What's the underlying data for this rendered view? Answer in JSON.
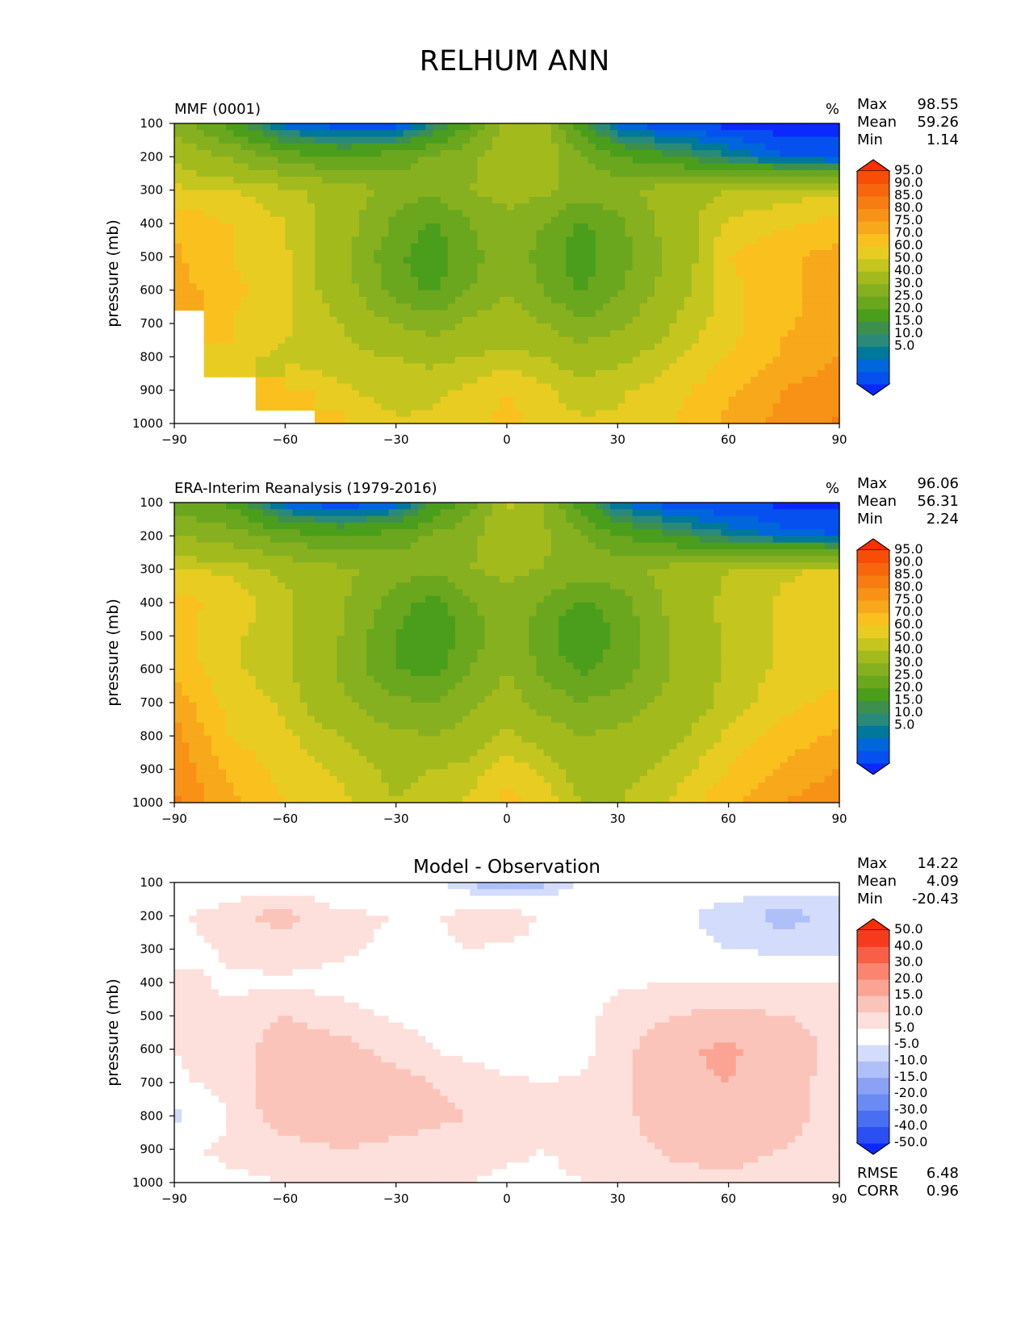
{
  "figure": {
    "title": "RELHUM ANN"
  },
  "colors": {
    "abs_levels": [
      "#0b29ff",
      "#0650f0",
      "#0066dc",
      "#00789a",
      "#2a8a7a",
      "#3d8f4e",
      "#4a9e1c",
      "#6aa71e",
      "#86b01f",
      "#a3ba1d",
      "#c4c61f",
      "#e8cc22",
      "#f9c01e",
      "#f7a81b",
      "#f79217",
      "#f77c11",
      "#f7650d",
      "#f84d06",
      "#fb2f00"
    ],
    "diff_levels": [
      "#0b29ff",
      "#2b4ff3",
      "#4a6ef2",
      "#6a8af4",
      "#8aa1f5",
      "#afbff8",
      "#d3dcfa",
      "#ffffff",
      "#fde0db",
      "#fbc4ba",
      "#fba494",
      "#fa8470",
      "#f85f47",
      "#f53a1d",
      "#fb2f00"
    ]
  },
  "panels": [
    {
      "id": "model",
      "title_left": "MMF (0001)",
      "title_center": "",
      "units": "%",
      "stats": {
        "labels": [
          "Max",
          "Mean",
          "Min"
        ],
        "values": [
          "98.55",
          "59.26",
          "1.14"
        ]
      },
      "ylabel": "pressure (mb)",
      "colorbar_labels": [
        "95.0",
        "90.0",
        "85.0",
        "80.0",
        "75.0",
        "70.0",
        "60.0",
        "50.0",
        "40.0",
        "30.0",
        "25.0",
        "20.0",
        "15.0",
        "10.0",
        "5.0"
      ]
    },
    {
      "id": "obs",
      "title_left": "ERA-Interim Reanalysis (1979-2016)",
      "title_center": "",
      "units": "%",
      "stats": {
        "labels": [
          "Max",
          "Mean",
          "Min"
        ],
        "values": [
          "96.06",
          "56.31",
          "2.24"
        ]
      },
      "ylabel": "pressure (mb)",
      "colorbar_labels": [
        "95.0",
        "90.0",
        "85.0",
        "80.0",
        "75.0",
        "70.0",
        "60.0",
        "50.0",
        "40.0",
        "30.0",
        "25.0",
        "20.0",
        "15.0",
        "10.0",
        "5.0"
      ]
    },
    {
      "id": "diff",
      "title_left": "",
      "title_center": "Model - Observation",
      "units": "",
      "stats": {
        "labels": [
          "Max",
          "Mean",
          "Min"
        ],
        "values": [
          "14.22",
          "4.09",
          "-20.43"
        ]
      },
      "ylabel": "pressure (mb)",
      "colorbar_labels": [
        "50.0",
        "40.0",
        "30.0",
        "20.0",
        "15.0",
        "10.0",
        "5.0",
        "-5.0",
        "-10.0",
        "-15.0",
        "-20.0",
        "-30.0",
        "-40.0",
        "-50.0"
      ],
      "metrics": {
        "labels": [
          "RMSE",
          "CORR"
        ],
        "values": [
          "6.48",
          "0.96"
        ]
      }
    }
  ],
  "chart_data": [
    {
      "type": "heatmap",
      "title": "MMF (0001)",
      "units": "%",
      "ylabel": "pressure (mb)",
      "x_ticks": [
        -90,
        -60,
        -30,
        0,
        30,
        60,
        90
      ],
      "y_ticks": [
        100,
        200,
        300,
        400,
        500,
        600,
        700,
        800,
        900,
        1000
      ],
      "xlim": [
        -90,
        90
      ],
      "ylim": [
        1000,
        100
      ],
      "levels": [
        5,
        10,
        15,
        20,
        25,
        30,
        40,
        50,
        60,
        70,
        75,
        80,
        85,
        90,
        95
      ],
      "x": [
        -90,
        -75,
        -60,
        -45,
        -30,
        -20,
        -10,
        0,
        10,
        20,
        30,
        45,
        60,
        75,
        90
      ],
      "y": [
        100,
        200,
        300,
        400,
        500,
        600,
        700,
        800,
        900,
        1000
      ],
      "z": [
        [
          55,
          35,
          12,
          5,
          5,
          20,
          40,
          62,
          62,
          35,
          10,
          5,
          3,
          2,
          2
        ],
        [
          68,
          60,
          45,
          40,
          45,
          52,
          57,
          68,
          68,
          52,
          40,
          30,
          20,
          10,
          8
        ],
        [
          76,
          75,
          72,
          66,
          56,
          52,
          60,
          63,
          63,
          56,
          57,
          66,
          70,
          72,
          74
        ],
        [
          84,
          80,
          75,
          66,
          48,
          38,
          50,
          58,
          50,
          38,
          47,
          66,
          76,
          79,
          82
        ],
        [
          86,
          80,
          76,
          64,
          42,
          34,
          46,
          56,
          46,
          35,
          45,
          63,
          80,
          84,
          87
        ],
        [
          87,
          82,
          76,
          66,
          45,
          38,
          50,
          60,
          50,
          38,
          48,
          66,
          78,
          84,
          87
        ],
        [
          null,
          80,
          76,
          70,
          60,
          55,
          62,
          66,
          60,
          52,
          58,
          70,
          78,
          84,
          88
        ],
        [
          null,
          78,
          74,
          72,
          70,
          68,
          70,
          72,
          70,
          66,
          68,
          74,
          80,
          86,
          90
        ],
        [
          null,
          null,
          80,
          76,
          72,
          74,
          76,
          80,
          76,
          72,
          74,
          78,
          84,
          90,
          93
        ],
        [
          null,
          null,
          null,
          80,
          76,
          76,
          78,
          82,
          78,
          76,
          76,
          80,
          86,
          92,
          96
        ]
      ]
    },
    {
      "type": "heatmap",
      "title": "ERA-Interim Reanalysis (1979-2016)",
      "units": "%",
      "ylabel": "pressure (mb)",
      "x_ticks": [
        -90,
        -60,
        -30,
        0,
        30,
        60,
        90
      ],
      "y_ticks": [
        100,
        200,
        300,
        400,
        500,
        600,
        700,
        800,
        900,
        1000
      ],
      "xlim": [
        -90,
        90
      ],
      "ylim": [
        1000,
        100
      ],
      "levels": [
        5,
        10,
        15,
        20,
        25,
        30,
        40,
        50,
        60,
        70,
        75,
        80,
        85,
        90,
        95
      ],
      "x": [
        -90,
        -75,
        -60,
        -45,
        -30,
        -20,
        -10,
        0,
        10,
        20,
        30,
        45,
        60,
        75,
        90
      ],
      "y": [
        100,
        200,
        300,
        400,
        500,
        600,
        700,
        800,
        900,
        1000
      ],
      "z": [
        [
          45,
          38,
          10,
          5,
          10,
          30,
          45,
          72,
          60,
          35,
          15,
          5,
          4,
          4,
          4
        ],
        [
          60,
          55,
          45,
          40,
          45,
          52,
          58,
          65,
          62,
          52,
          40,
          30,
          20,
          12,
          10
        ],
        [
          76,
          74,
          68,
          62,
          56,
          52,
          60,
          62,
          60,
          55,
          57,
          64,
          70,
          74,
          76
        ],
        [
          82,
          78,
          72,
          62,
          45,
          36,
          48,
          58,
          48,
          38,
          45,
          64,
          72,
          76,
          80
        ],
        [
          82,
          76,
          72,
          60,
          40,
          30,
          45,
          55,
          45,
          28,
          42,
          60,
          72,
          76,
          78
        ],
        [
          84,
          76,
          72,
          58,
          40,
          36,
          50,
          60,
          48,
          38,
          44,
          60,
          72,
          76,
          78
        ],
        [
          88,
          78,
          74,
          62,
          52,
          50,
          58,
          64,
          56,
          50,
          54,
          64,
          72,
          78,
          82
        ],
        [
          92,
          80,
          76,
          70,
          62,
          60,
          64,
          72,
          66,
          60,
          62,
          68,
          76,
          82,
          86
        ],
        [
          94,
          84,
          78,
          74,
          68,
          70,
          72,
          78,
          74,
          66,
          66,
          72,
          80,
          86,
          90
        ],
        [
          96,
          86,
          80,
          76,
          70,
          72,
          76,
          82,
          78,
          70,
          70,
          76,
          84,
          90,
          94
        ]
      ]
    },
    {
      "type": "heatmap",
      "title": "Model - Observation",
      "units": "",
      "ylabel": "pressure (mb)",
      "x_ticks": [
        -90,
        -60,
        -30,
        0,
        30,
        60,
        90
      ],
      "y_ticks": [
        100,
        200,
        300,
        400,
        500,
        600,
        700,
        800,
        900,
        1000
      ],
      "xlim": [
        -90,
        90
      ],
      "ylim": [
        1000,
        100
      ],
      "levels": [
        -50,
        -40,
        -30,
        -20,
        -15,
        -10,
        -5,
        5,
        10,
        15,
        20,
        30,
        40,
        50
      ],
      "x": [
        -90,
        -75,
        -60,
        -45,
        -30,
        -20,
        -10,
        0,
        10,
        20,
        30,
        45,
        60,
        75,
        90
      ],
      "y": [
        100,
        200,
        300,
        400,
        500,
        600,
        700,
        800,
        900,
        1000
      ],
      "z": [
        [
          -6,
          0,
          2,
          0,
          0,
          -4,
          -10,
          -18,
          -12,
          -4,
          0,
          0,
          -1,
          -2,
          -2
        ],
        [
          4,
          9,
          12,
          6,
          5,
          4,
          8,
          9,
          4,
          5,
          2,
          -3,
          -8,
          -12,
          -8
        ],
        [
          2,
          6,
          8,
          6,
          4,
          3,
          5,
          4,
          3,
          2,
          1,
          -2,
          -5,
          -7,
          -8
        ],
        [
          7,
          4,
          4,
          3,
          2,
          2,
          2,
          2,
          1,
          2,
          4,
          5,
          5,
          5,
          5
        ],
        [
          7,
          6,
          10,
          7,
          4,
          3,
          3,
          2,
          2,
          3,
          7,
          10,
          12,
          10,
          9
        ],
        [
          5,
          7,
          14,
          12,
          8,
          5,
          3,
          2,
          2,
          3,
          8,
          14,
          16,
          12,
          9
        ],
        [
          4,
          7,
          14,
          14,
          12,
          10,
          8,
          6,
          5,
          6,
          8,
          14,
          15,
          12,
          8
        ],
        [
          -8,
          6,
          13,
          14,
          12,
          11,
          10,
          8,
          6,
          5,
          8,
          14,
          15,
          13,
          7
        ],
        [
          4,
          6,
          8,
          10,
          9,
          8,
          7,
          6,
          5,
          6,
          8,
          11,
          12,
          10,
          6
        ],
        [
          3,
          4,
          5,
          6,
          6,
          6,
          5,
          4,
          4,
          5,
          6,
          8,
          9,
          7,
          6
        ]
      ]
    }
  ]
}
